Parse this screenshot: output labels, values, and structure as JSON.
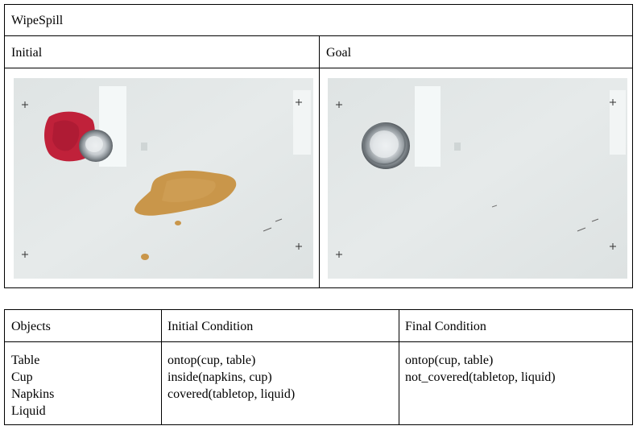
{
  "task": {
    "title": "WipeSpill"
  },
  "images": {
    "initial_label": "Initial",
    "goal_label": "Goal"
  },
  "table": {
    "headers": [
      "Objects",
      "Initial Condition",
      "Final Condition"
    ],
    "objects": [
      "Table",
      "Cup",
      "Napkins",
      "Liquid"
    ],
    "initial_conditions": [
      "ontop(cup, table)",
      "inside(napkins, cup)",
      "covered(tabletop, liquid)"
    ],
    "final_conditions": [
      "ontop(cup, table)",
      "not_covered(tabletop, liquid)"
    ]
  },
  "colors": {
    "table_surface": "#e2e7e7",
    "napkin": "#c0213a",
    "cup": "#b8bec3",
    "spill": "#c9964a"
  }
}
